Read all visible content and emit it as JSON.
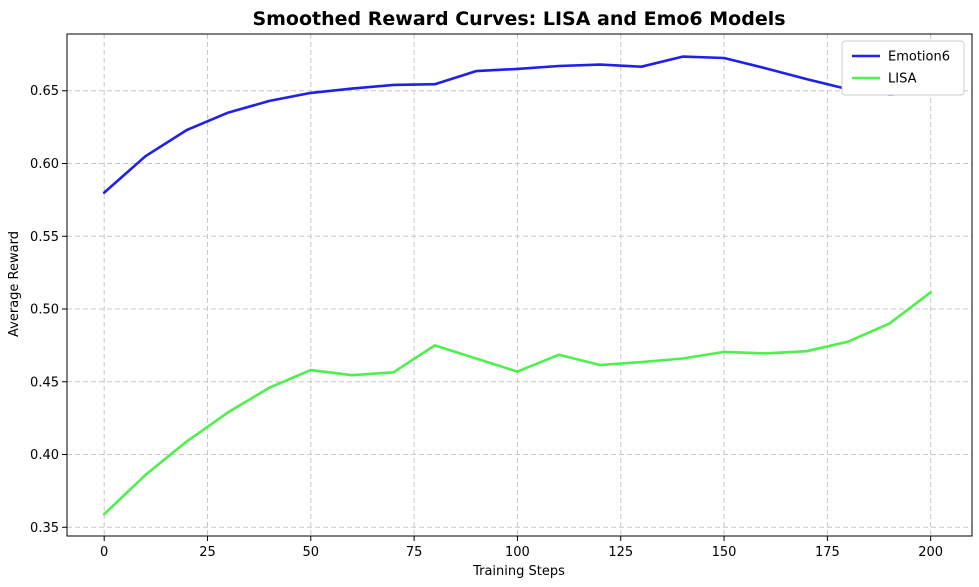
{
  "chart_data": {
    "type": "line",
    "title": "Smoothed Reward Curves: LISA and Emo6 Models",
    "xlabel": "Training Steps",
    "ylabel": "Average Reward",
    "xlim": [
      -9,
      210
    ],
    "ylim": [
      0.344,
      0.689
    ],
    "xticks": [
      0,
      25,
      50,
      75,
      100,
      125,
      150,
      175,
      200
    ],
    "yticks": [
      0.35,
      0.4,
      0.45,
      0.5,
      0.55,
      0.6,
      0.65
    ],
    "ytick_labels": [
      "0.35",
      "0.40",
      "0.45",
      "0.50",
      "0.55",
      "0.60",
      "0.65"
    ],
    "grid": true,
    "legend_position": "top-right",
    "x": [
      0,
      10,
      20,
      30,
      40,
      50,
      60,
      70,
      80,
      90,
      100,
      110,
      120,
      130,
      140,
      150,
      160,
      170,
      180,
      190,
      200
    ],
    "series": [
      {
        "name": "Emotion6",
        "color": "#2020e6",
        "values": [
          0.58,
          0.605,
          0.623,
          0.635,
          0.643,
          0.6485,
          0.6515,
          0.654,
          0.6545,
          0.6635,
          0.665,
          0.667,
          0.668,
          0.6665,
          0.6735,
          0.6725,
          0.6655,
          0.658,
          0.651,
          0.6475,
          0.6485
        ]
      },
      {
        "name": "LISA",
        "color": "#4df04d",
        "values": [
          0.359,
          0.386,
          0.409,
          0.429,
          0.446,
          0.458,
          0.4545,
          0.4565,
          0.475,
          0.466,
          0.457,
          0.4685,
          0.4615,
          0.4635,
          0.466,
          0.4705,
          0.4695,
          0.471,
          0.4775,
          0.49,
          0.5115
        ]
      }
    ]
  }
}
